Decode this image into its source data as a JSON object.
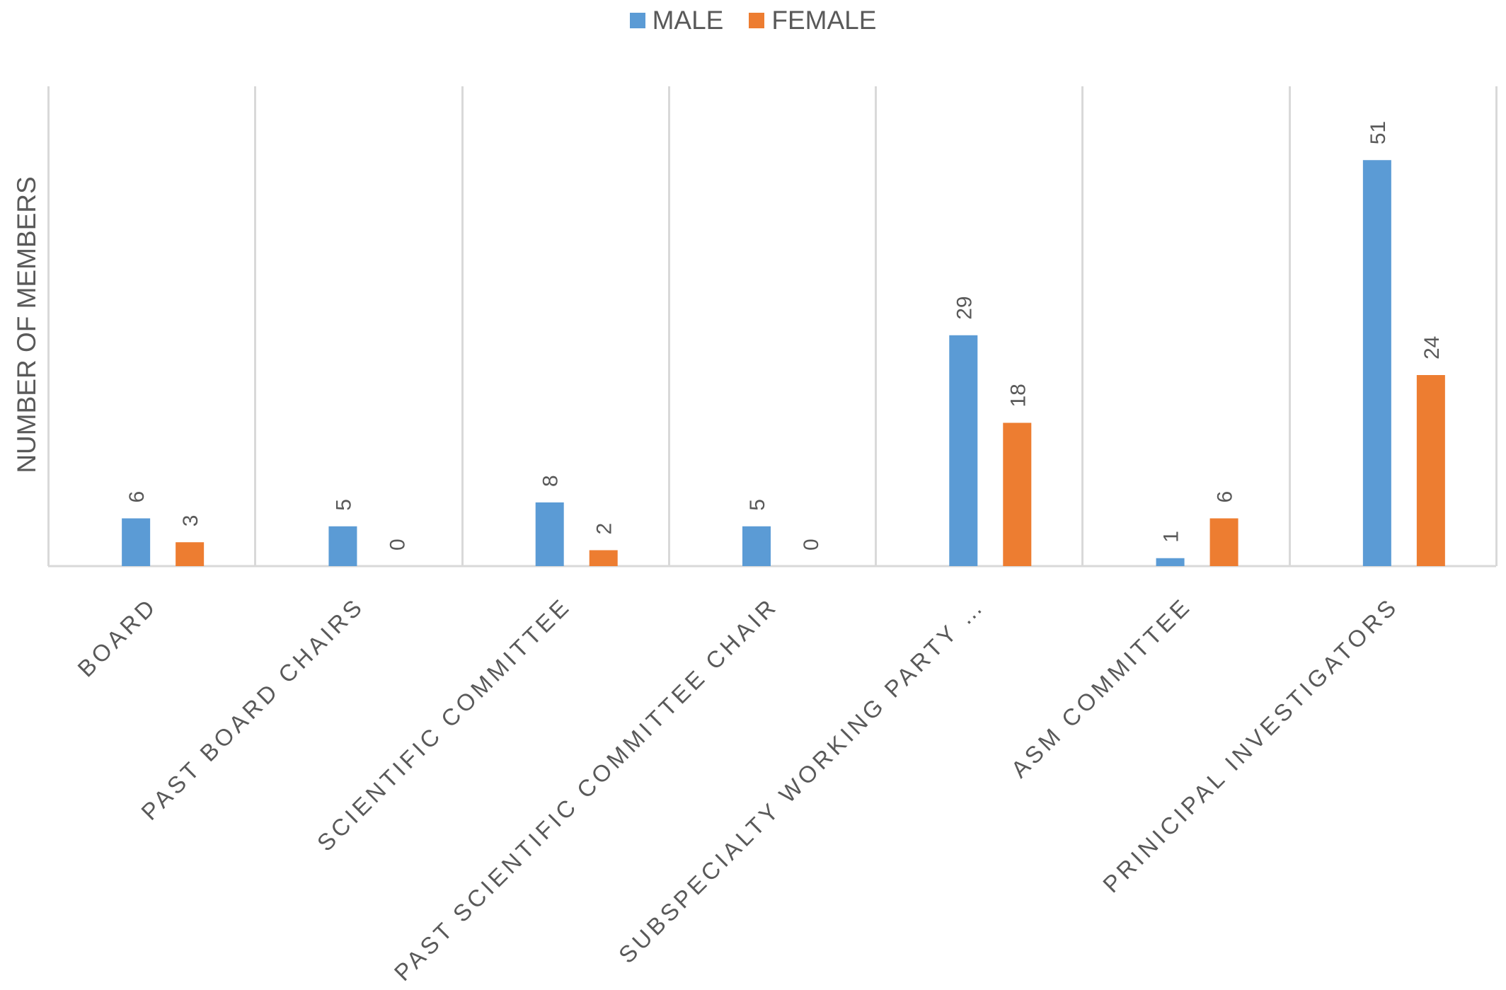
{
  "chart_data": {
    "type": "bar",
    "title": "",
    "xlabel": "",
    "ylabel": "NUMBER OF MEMBERS",
    "ylim": [
      0,
      60
    ],
    "grid": false,
    "legend_position": "top-center",
    "categories": [
      "BOARD",
      "PAST BOARD CHAIRS",
      "SCIENTIFIC COMMITTEE",
      "PAST SCIENTIFIC COMMITTEE CHAIR",
      "SUBSPECIALTY WORKING PARTY …",
      "ASM COMMITTEE",
      "PRINICIPAL INVESTIGATORS"
    ],
    "series": [
      {
        "name": "MALE",
        "color": "#5B9BD5",
        "values": [
          6,
          5,
          8,
          5,
          29,
          1,
          51
        ]
      },
      {
        "name": "FEMALE",
        "color": "#ED7D31",
        "values": [
          3,
          0,
          2,
          0,
          18,
          6,
          24
        ]
      }
    ]
  }
}
